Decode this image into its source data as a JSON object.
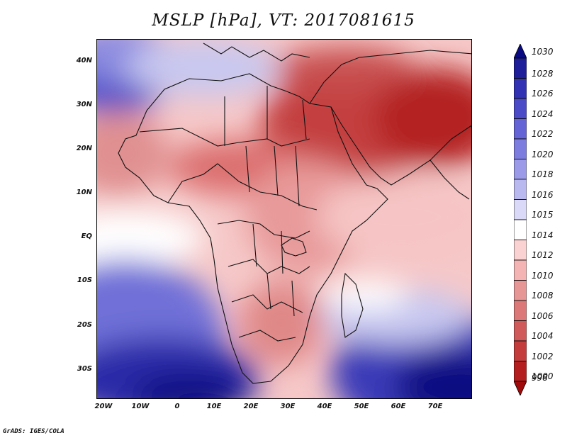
{
  "title": "MSLP [hPa], VT: 2017081615",
  "credit": "GrADS: IGES/COLA",
  "lat_labels": [
    "40N",
    "30N",
    "20N",
    "10N",
    "EQ",
    "10S",
    "20S",
    "30S"
  ],
  "lon_labels": [
    "20W",
    "10W",
    "0",
    "10E",
    "20E",
    "30E",
    "40E",
    "50E",
    "60E",
    "70E"
  ],
  "colorbar": {
    "levels": [
      "1030",
      "1028",
      "1026",
      "1024",
      "1022",
      "1020",
      "1018",
      "1016",
      "1015",
      "1014",
      "1012",
      "1010",
      "1008",
      "1006",
      "1004",
      "1002",
      "1000",
      "998"
    ],
    "colors": [
      "#0a0a82",
      "#1e1e9a",
      "#3232b4",
      "#4b4bc8",
      "#6464d6",
      "#7d7de0",
      "#9a9ae8",
      "#b9b9f0",
      "#dadaf8",
      "#ffffff",
      "#fad2d2",
      "#f4b4b4",
      "#e79696",
      "#dc7878",
      "#d05a5a",
      "#c43c3c",
      "#b41e1e",
      "#a00a0a"
    ]
  }
}
